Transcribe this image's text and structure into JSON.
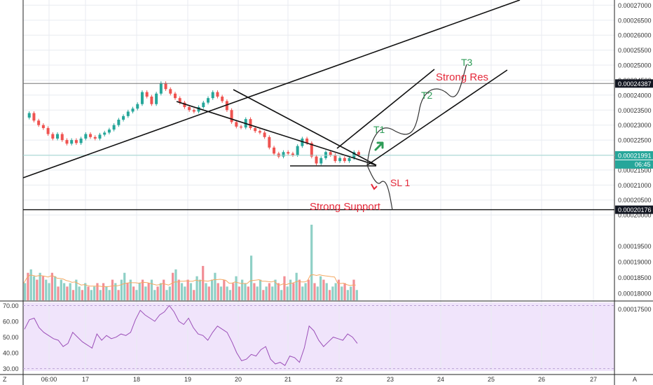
{
  "colors": {
    "up": "#26a69a",
    "down": "#ef5350",
    "vol_up": "#8fd0c6",
    "vol_down": "#f28f96",
    "green_text": "#2e9c57",
    "red_text": "#e5293a",
    "rsi_line": "#9b4fb8",
    "rsi_bg": "#f0e4fb",
    "ma_line": "#f4a862",
    "grid": "#e8ebf0",
    "axis_text": "#333333"
  },
  "chart_data": [
    {
      "type": "candlestick",
      "ylim": [
        0.0002012,
        0.0002715
      ],
      "y_ticks": [
        "0.00027000",
        "0.00026500",
        "0.00026000",
        "0.00025500",
        "0.00025000",
        "0.00024500",
        "0.00024000",
        "0.00023500",
        "0.00023000",
        "0.00022500",
        "0.00022000",
        "0.00021500",
        "0.00021000",
        "0.00020500",
        "0.00020000"
      ],
      "horizontal_lines": [
        {
          "value": 0.00024387,
          "label": "0.00024387",
          "name": "Strong Res"
        },
        {
          "value": 0.00020176,
          "label": "0.00020176",
          "name": "Strong Support"
        }
      ],
      "current_price": {
        "value": 0.00021991,
        "label": "0.00021991",
        "countdown": "06:45"
      },
      "x_ticks": [
        "06:00",
        "17",
        "18",
        "19",
        "20",
        "21",
        "22",
        "23",
        "24",
        "25",
        "26",
        "27"
      ],
      "annotations": [
        {
          "text": "T1",
          "color": "green"
        },
        {
          "text": "T2",
          "color": "green"
        },
        {
          "text": "T3",
          "color": "green"
        },
        {
          "text": "Strong Res",
          "color": "red"
        },
        {
          "text": "SL 1",
          "color": "red"
        },
        {
          "text": "Strong Support",
          "color": "red"
        }
      ],
      "price_path": [
        0.0002325,
        0.000234,
        0.0002315,
        0.00023,
        0.000229,
        0.000227,
        0.0002255,
        0.000227,
        0.000225,
        0.0002238,
        0.000225,
        0.000224,
        0.0002255,
        0.000227,
        0.000226,
        0.0002255,
        0.0002268,
        0.0002275,
        0.0002285,
        0.00023,
        0.0002318,
        0.000233,
        0.0002345,
        0.0002355,
        0.000237,
        0.000241,
        0.0002395,
        0.000237,
        0.0002405,
        0.000244,
        0.000242,
        0.0002405,
        0.000239,
        0.0002375,
        0.000236,
        0.000235,
        0.0002345,
        0.000236,
        0.0002375,
        0.000239,
        0.000241,
        0.0002395,
        0.000238,
        0.000235,
        0.000231,
        0.0002295,
        0.0002292,
        0.000232,
        0.000229,
        0.000228,
        0.0002275,
        0.000226,
        0.0002225,
        0.0002205,
        0.0002195,
        0.000221,
        0.0002205,
        0.00022,
        0.000223,
        0.0002255,
        0.000224,
        0.0002195,
        0.0002172,
        0.000219,
        0.000221,
        0.00022,
        0.000218,
        0.000219,
        0.000218,
        0.000219,
        0.000221,
        0.00022
      ]
    },
    {
      "type": "bar",
      "name": "volume",
      "values": [
        5,
        8,
        9,
        7,
        6,
        8,
        7,
        6,
        5,
        8,
        7,
        4,
        6,
        5,
        4,
        5,
        3,
        6,
        4,
        3,
        5,
        4,
        3,
        4,
        5,
        3,
        5,
        4,
        3,
        6,
        5,
        3,
        6,
        8,
        5,
        6,
        4,
        3,
        5,
        6,
        4,
        5,
        6,
        3,
        4,
        5,
        6,
        3,
        4,
        8,
        9,
        6,
        5,
        4,
        6,
        5,
        3,
        7,
        6,
        10,
        5,
        4,
        6,
        8,
        5,
        4,
        6,
        4,
        3,
        5,
        7,
        4,
        6,
        5,
        4,
        13,
        5,
        4,
        6,
        3,
        4,
        5,
        4,
        6,
        5,
        3,
        7,
        4,
        6,
        5,
        8,
        6,
        4,
        5,
        6,
        22,
        5,
        4,
        7,
        6,
        5,
        3,
        4,
        5,
        6,
        4,
        5,
        3,
        4,
        6,
        3
      ]
    },
    {
      "type": "line",
      "name": "RSI",
      "ylim": [
        28.5,
        72
      ],
      "y_ticks": [
        "70.00",
        "60.00",
        "50.00",
        "40.00",
        "30.00"
      ],
      "values": [
        55,
        61,
        62,
        56,
        53,
        51,
        49,
        48,
        44,
        46,
        53,
        50,
        47,
        45,
        43,
        52,
        48,
        51,
        49,
        50,
        52,
        51,
        53,
        61,
        67,
        64,
        62,
        60,
        64,
        66,
        70,
        66,
        60,
        58,
        62,
        56,
        52,
        51,
        48,
        53,
        57,
        55,
        53,
        47,
        40,
        35,
        36,
        39,
        38,
        42,
        44,
        36,
        33,
        34,
        32,
        38,
        37,
        34,
        43,
        57,
        54,
        48,
        44,
        47,
        50,
        49,
        48,
        52,
        50,
        46
      ]
    }
  ]
}
